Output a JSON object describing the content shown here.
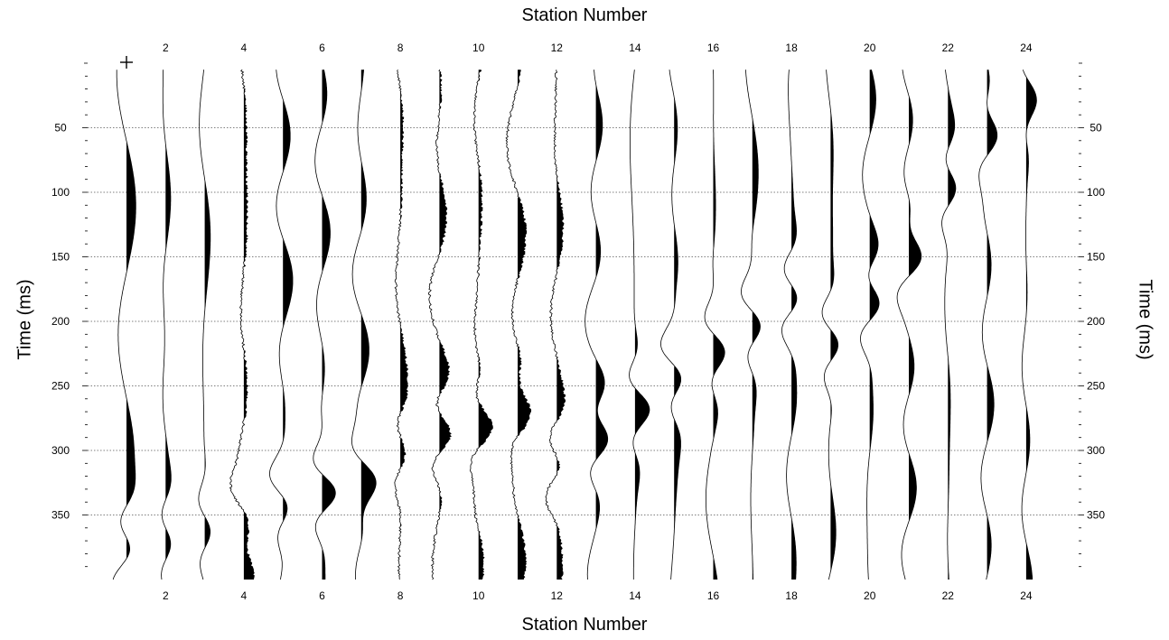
{
  "chart_data": {
    "type": "line",
    "subtype": "seismic-wiggle-traces",
    "xlabel": "Station Number",
    "ylabel": "Time (ms)",
    "x_tick_labels": [
      "2",
      "4",
      "6",
      "8",
      "10",
      "12",
      "14",
      "16",
      "18",
      "20",
      "22",
      "24"
    ],
    "y_tick_labels": [
      "50",
      "100",
      "150",
      "200",
      "250",
      "300",
      "350"
    ],
    "xlim": [
      0,
      25
    ],
    "ylim": [
      0,
      400
    ],
    "y_inverted": true,
    "grid": "horizontal dotted at 50 ms intervals",
    "fill": "positive lobes filled black (variable area wiggle)",
    "stations": [
      1,
      2,
      3,
      4,
      5,
      6,
      7,
      8,
      9,
      10,
      11,
      12,
      13,
      14,
      15,
      16,
      17,
      18,
      19,
      20,
      21,
      22,
      23,
      24
    ],
    "first_break_times_ms": [
      375,
      370,
      360,
      350,
      340,
      330,
      320,
      300,
      285,
      280,
      270,
      310,
      290,
      265,
      240,
      220,
      200,
      180,
      215,
      185,
      150,
      95,
      55,
      25
    ],
    "surface_wave_amplitude": [
      0.45,
      0.35,
      0.35,
      0.3,
      0.45,
      0.6,
      0.4,
      0.3,
      0.55,
      0.45,
      0.35,
      0.45,
      0.5,
      0.55,
      0.5,
      0.5,
      0.5,
      0.5,
      0.5,
      0.5,
      0.4,
      0.4,
      0.35,
      0.3
    ],
    "colors": {
      "trace": "#000000",
      "fill": "#000000",
      "grid": "#555555",
      "background": "#ffffff"
    }
  }
}
